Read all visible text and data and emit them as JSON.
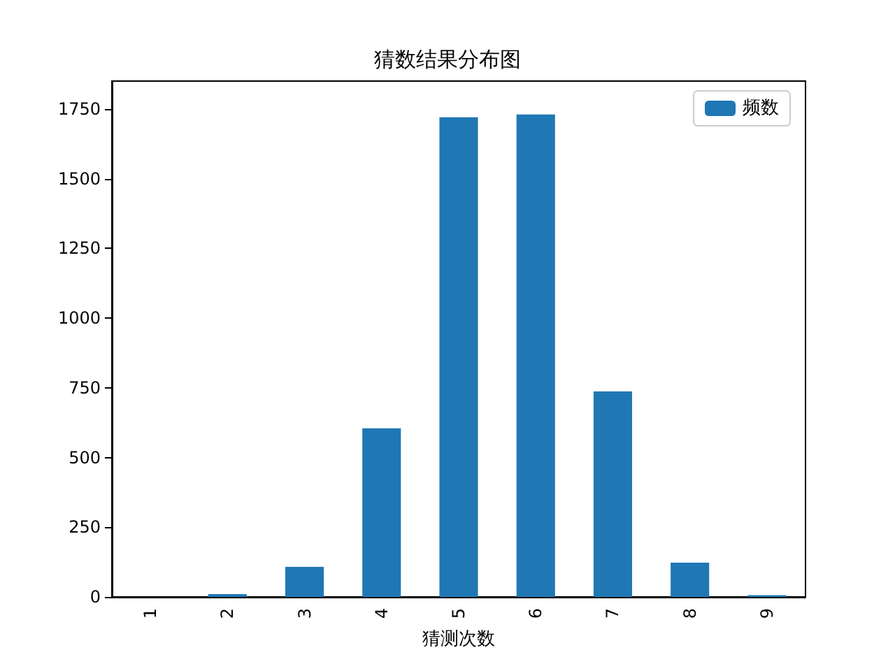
{
  "chart_data": {
    "type": "bar",
    "title": "猜数结果分布图",
    "xlabel": "猜测次数",
    "categories": [
      "1",
      "2",
      "3",
      "4",
      "5",
      "6",
      "7",
      "8",
      "9"
    ],
    "series": [
      {
        "name": "频数",
        "color": "#1f77b4",
        "values": [
          0,
          10,
          108,
          605,
          1720,
          1730,
          737,
          123,
          6
        ]
      }
    ],
    "ylim": [
      0,
      1850
    ],
    "yticks": [
      0,
      250,
      500,
      750,
      1000,
      1250,
      1500,
      1750
    ],
    "grid": false,
    "legend": "top right"
  }
}
